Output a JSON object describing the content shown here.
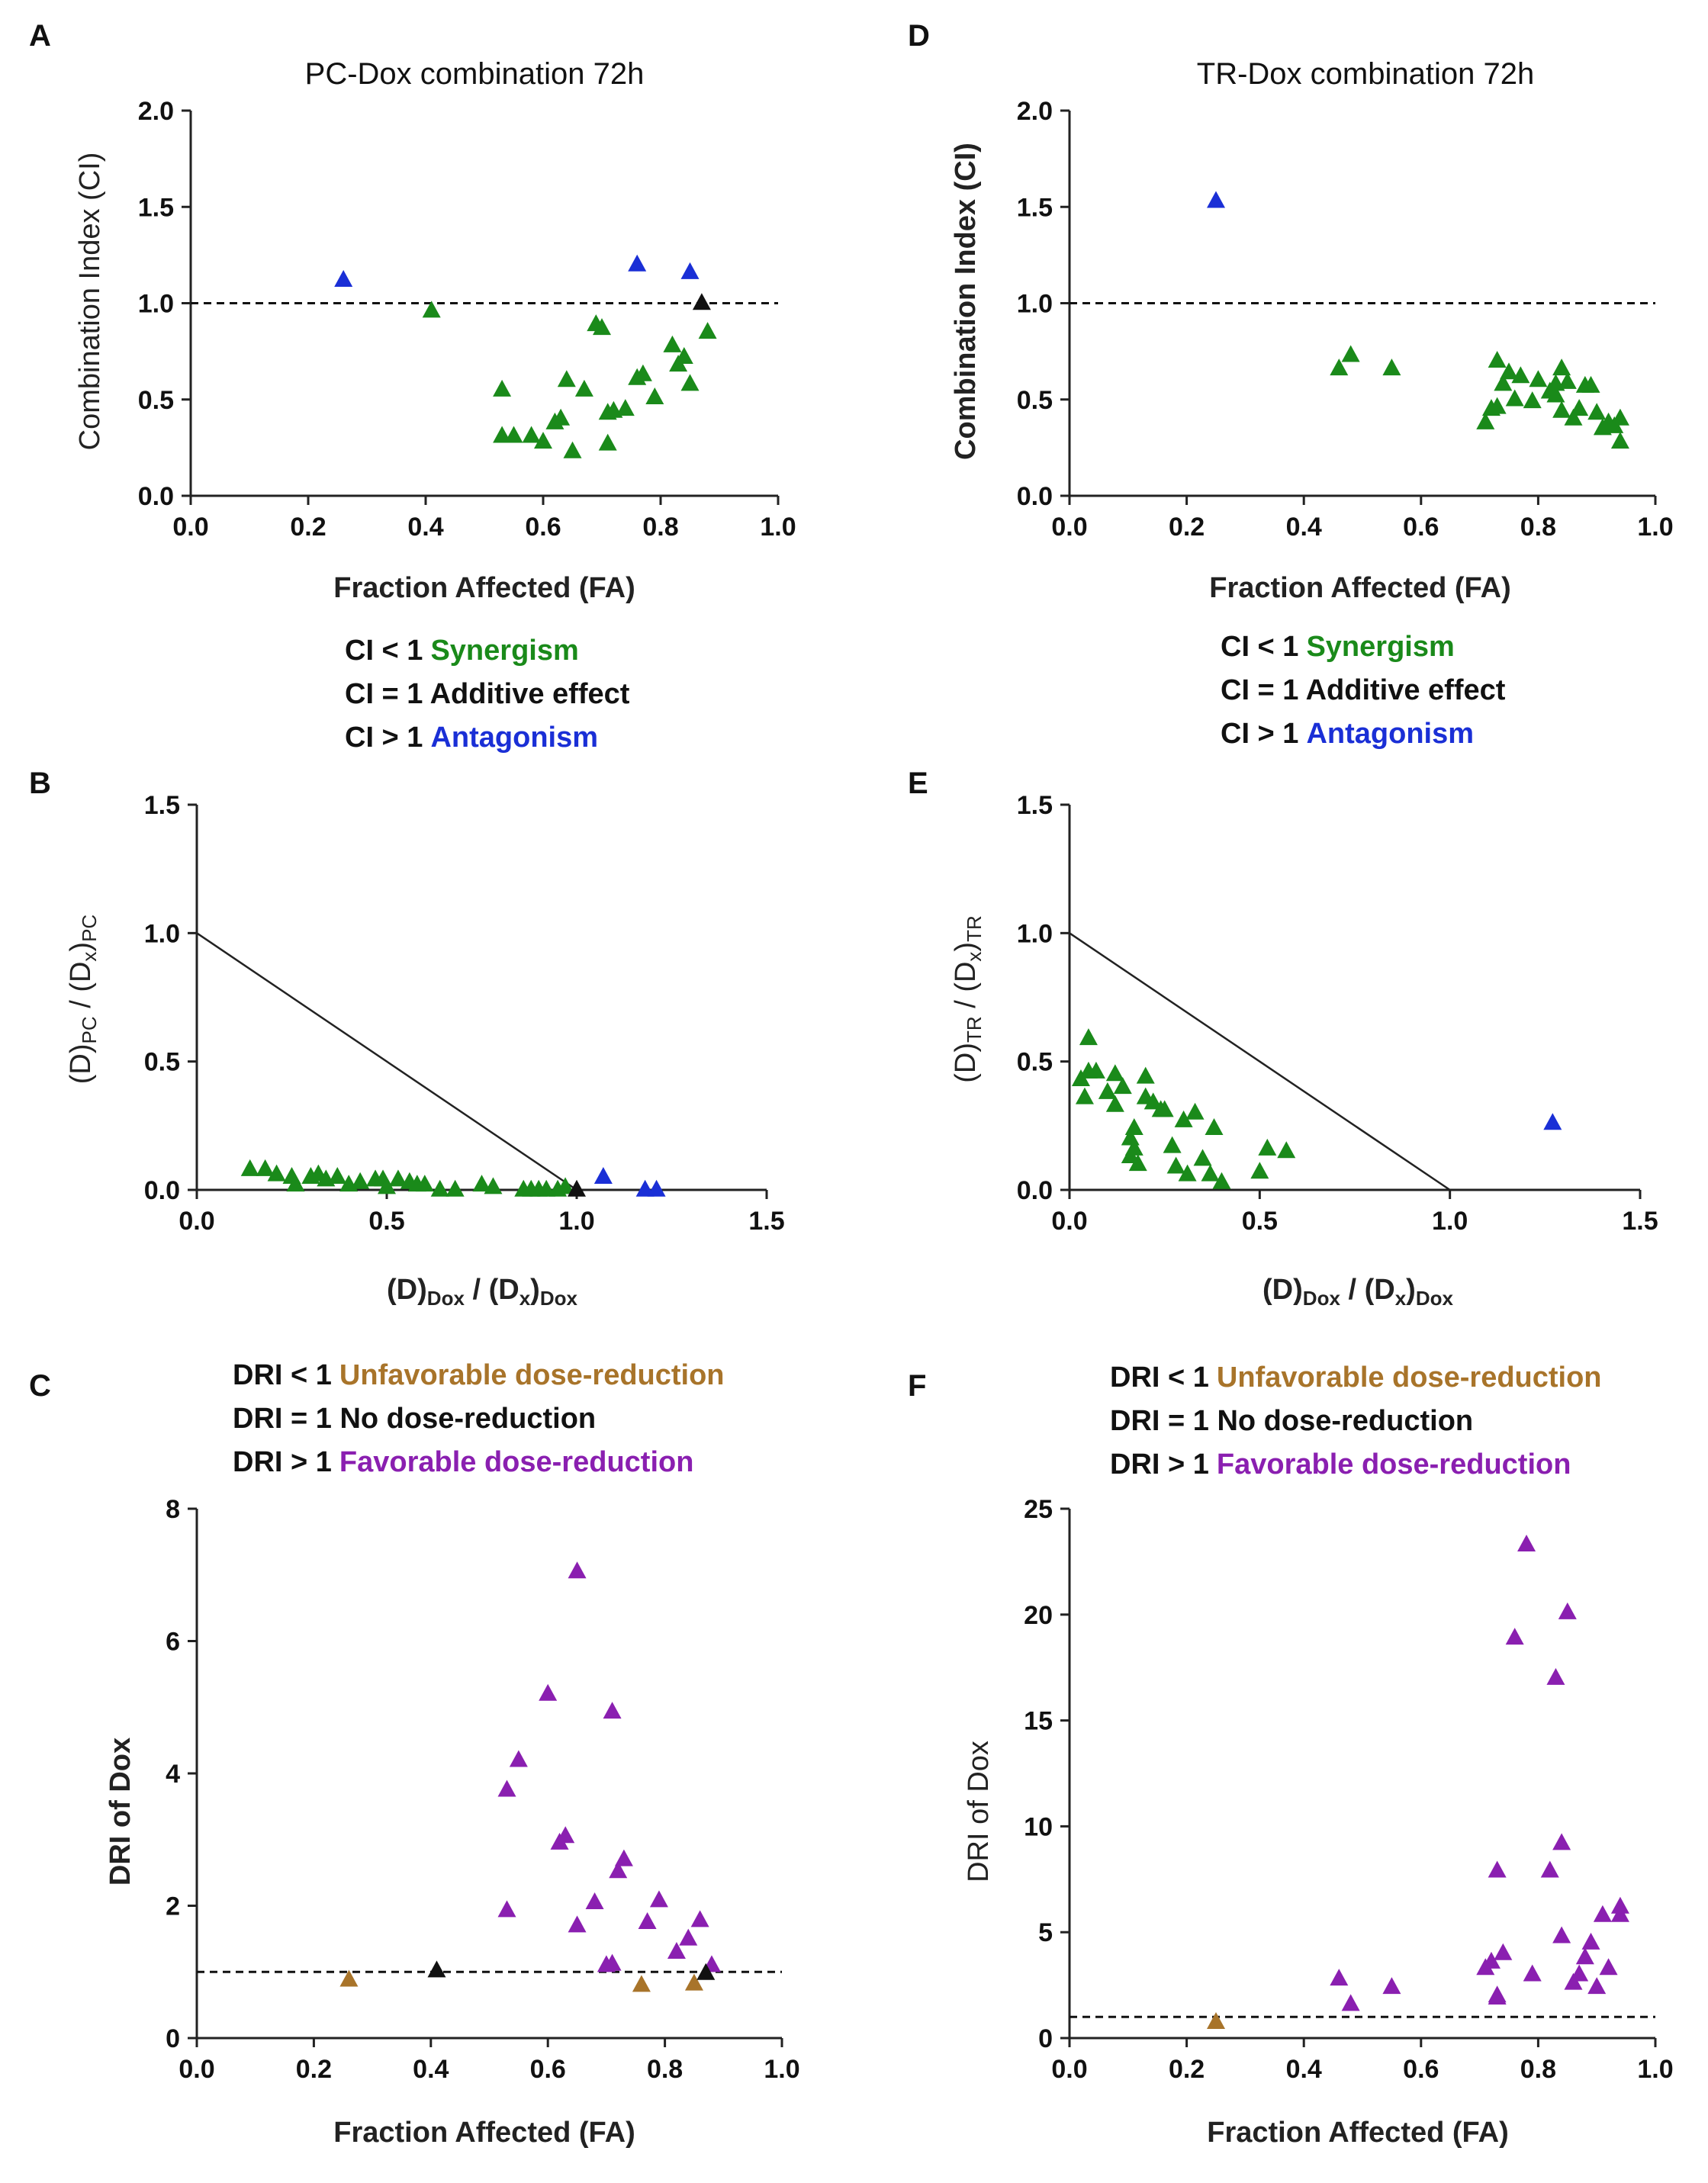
{
  "colors": {
    "synergism": "#1a8a1a",
    "antagonism": "#1a2fd6",
    "additive": "#111111",
    "favorable": "#8a1fb0",
    "unfavorable": "#a8742a"
  },
  "panels": {
    "A": {
      "letter": "A"
    },
    "B": {
      "letter": "B"
    },
    "C": {
      "letter": "C"
    },
    "D": {
      "letter": "D"
    },
    "E": {
      "letter": "E"
    },
    "F": {
      "letter": "F"
    }
  },
  "legend_ci": {
    "line1_prefix": "CI < 1",
    "line1_label": "Synergism",
    "line2": "CI = 1 Additive effect",
    "line3_prefix": "CI > 1",
    "line3_label": "Antagonism"
  },
  "legend_dri": {
    "line1_prefix": "DRI < 1",
    "line1_label": "Unfavorable dose-reduction",
    "line2": "DRI = 1 No dose-reduction",
    "line3_prefix": "DRI > 1",
    "line3_label": "Favorable dose-reduction"
  },
  "chart_data": [
    {
      "id": "A",
      "type": "scatter",
      "title": "PC-Dox combination 72h",
      "xlabel": "Fraction Affected (FA)",
      "ylabel": "Combination Index (CI)",
      "xlim": [
        0,
        1
      ],
      "ylim": [
        0,
        2
      ],
      "xticks": [
        "0.0",
        "0.2",
        "0.4",
        "0.6",
        "0.8",
        "1.0"
      ],
      "yticks": [
        "0.0",
        "0.5",
        "1.0",
        "1.5",
        "2.0"
      ],
      "reference_line": {
        "y": 1.0,
        "style": "dashed"
      },
      "series": [
        {
          "name": "Synergism",
          "color_key": "synergism",
          "points": [
            [
              0.41,
              0.96
            ],
            [
              0.53,
              0.55
            ],
            [
              0.53,
              0.31
            ],
            [
              0.55,
              0.31
            ],
            [
              0.58,
              0.31
            ],
            [
              0.6,
              0.28
            ],
            [
              0.62,
              0.38
            ],
            [
              0.63,
              0.4
            ],
            [
              0.64,
              0.6
            ],
            [
              0.65,
              0.23
            ],
            [
              0.67,
              0.55
            ],
            [
              0.69,
              0.89
            ],
            [
              0.7,
              0.87
            ],
            [
              0.71,
              0.27
            ],
            [
              0.71,
              0.43
            ],
            [
              0.72,
              0.44
            ],
            [
              0.74,
              0.45
            ],
            [
              0.76,
              0.61
            ],
            [
              0.77,
              0.63
            ],
            [
              0.79,
              0.51
            ],
            [
              0.82,
              0.78
            ],
            [
              0.83,
              0.68
            ],
            [
              0.84,
              0.72
            ],
            [
              0.85,
              0.58
            ],
            [
              0.88,
              0.85
            ]
          ]
        },
        {
          "name": "Antagonism",
          "color_key": "antagonism",
          "points": [
            [
              0.26,
              1.12
            ],
            [
              0.76,
              1.2
            ],
            [
              0.85,
              1.16
            ]
          ]
        },
        {
          "name": "Additive",
          "color_key": "additive",
          "points": [
            [
              0.87,
              1.0
            ]
          ]
        }
      ]
    },
    {
      "id": "B",
      "type": "scatter",
      "xlabel": "(D)Dox / (Dx)Dox",
      "ylabel": "(D)PC / (Dx)PC",
      "xlim": [
        0,
        1.5
      ],
      "ylim": [
        0,
        1.5
      ],
      "xticks": [
        "0.0",
        "0.5",
        "1.0",
        "1.5"
      ],
      "yticks": [
        "0.0",
        "0.5",
        "1.0",
        "1.5"
      ],
      "reference_line": {
        "from": [
          0,
          1
        ],
        "to": [
          1,
          0
        ],
        "style": "solid"
      },
      "series": [
        {
          "name": "Synergism",
          "color_key": "synergism",
          "points": [
            [
              0.14,
              0.08
            ],
            [
              0.18,
              0.08
            ],
            [
              0.21,
              0.06
            ],
            [
              0.25,
              0.05
            ],
            [
              0.26,
              0.02
            ],
            [
              0.3,
              0.05
            ],
            [
              0.32,
              0.06
            ],
            [
              0.34,
              0.04
            ],
            [
              0.37,
              0.05
            ],
            [
              0.4,
              0.02
            ],
            [
              0.43,
              0.03
            ],
            [
              0.47,
              0.04
            ],
            [
              0.49,
              0.04
            ],
            [
              0.5,
              0.01
            ],
            [
              0.53,
              0.04
            ],
            [
              0.56,
              0.03
            ],
            [
              0.58,
              0.02
            ],
            [
              0.6,
              0.02
            ],
            [
              0.64,
              0.0
            ],
            [
              0.68,
              0.0
            ],
            [
              0.75,
              0.02
            ],
            [
              0.78,
              0.01
            ],
            [
              0.86,
              0.0
            ],
            [
              0.88,
              0.0
            ],
            [
              0.9,
              0.0
            ],
            [
              0.92,
              0.0
            ],
            [
              0.95,
              0.0
            ],
            [
              0.97,
              0.01
            ]
          ]
        },
        {
          "name": "Antagonism",
          "color_key": "antagonism",
          "points": [
            [
              1.07,
              0.05
            ],
            [
              1.18,
              0.0
            ],
            [
              1.21,
              0.0
            ]
          ]
        },
        {
          "name": "Additive",
          "color_key": "additive",
          "points": [
            [
              1.0,
              0.0
            ]
          ]
        }
      ]
    },
    {
      "id": "C",
      "type": "scatter",
      "xlabel": "Fraction Affected (FA)",
      "ylabel": "DRI of Dox",
      "xlim": [
        0,
        1
      ],
      "ylim": [
        0,
        8
      ],
      "xticks": [
        "0.0",
        "0.2",
        "0.4",
        "0.6",
        "0.8",
        "1.0"
      ],
      "yticks": [
        "0",
        "2",
        "4",
        "6",
        "8"
      ],
      "reference_line": {
        "y": 1.0,
        "style": "dashed"
      },
      "series": [
        {
          "name": "Favorable",
          "color_key": "favorable",
          "points": [
            [
              0.53,
              3.75
            ],
            [
              0.53,
              1.93
            ],
            [
              0.55,
              4.2
            ],
            [
              0.6,
              5.2
            ],
            [
              0.62,
              2.95
            ],
            [
              0.63,
              3.05
            ],
            [
              0.65,
              1.7
            ],
            [
              0.65,
              7.05
            ],
            [
              0.68,
              2.05
            ],
            [
              0.7,
              1.1
            ],
            [
              0.71,
              1.12
            ],
            [
              0.71,
              4.93
            ],
            [
              0.72,
              2.52
            ],
            [
              0.73,
              2.7
            ],
            [
              0.77,
              1.75
            ],
            [
              0.79,
              2.08
            ],
            [
              0.82,
              1.3
            ],
            [
              0.84,
              1.5
            ],
            [
              0.86,
              1.78
            ],
            [
              0.88,
              1.1
            ]
          ]
        },
        {
          "name": "Unfavorable",
          "color_key": "unfavorable",
          "points": [
            [
              0.26,
              0.88
            ],
            [
              0.76,
              0.8
            ],
            [
              0.85,
              0.82
            ]
          ]
        },
        {
          "name": "No dose-reduction",
          "color_key": "additive",
          "points": [
            [
              0.41,
              1.02
            ],
            [
              0.87,
              0.98
            ]
          ]
        }
      ]
    },
    {
      "id": "D",
      "type": "scatter",
      "title": "TR-Dox combination 72h",
      "xlabel": "Fraction Affected (FA)",
      "ylabel": "Combination Index (CI)",
      "xlim": [
        0,
        1
      ],
      "ylim": [
        0,
        2
      ],
      "xticks": [
        "0.0",
        "0.2",
        "0.4",
        "0.6",
        "0.8",
        "1.0"
      ],
      "yticks": [
        "0.0",
        "0.5",
        "1.0",
        "1.5",
        "2.0"
      ],
      "reference_line": {
        "y": 1.0,
        "style": "dashed"
      },
      "series": [
        {
          "name": "Synergism",
          "color_key": "synergism",
          "points": [
            [
              0.46,
              0.66
            ],
            [
              0.48,
              0.73
            ],
            [
              0.55,
              0.66
            ],
            [
              0.71,
              0.38
            ],
            [
              0.72,
              0.45
            ],
            [
              0.73,
              0.46
            ],
            [
              0.73,
              0.7
            ],
            [
              0.74,
              0.58
            ],
            [
              0.75,
              0.64
            ],
            [
              0.76,
              0.5
            ],
            [
              0.77,
              0.62
            ],
            [
              0.79,
              0.49
            ],
            [
              0.8,
              0.6
            ],
            [
              0.82,
              0.54
            ],
            [
              0.83,
              0.52
            ],
            [
              0.83,
              0.58
            ],
            [
              0.84,
              0.66
            ],
            [
              0.84,
              0.44
            ],
            [
              0.85,
              0.59
            ],
            [
              0.86,
              0.4
            ],
            [
              0.87,
              0.45
            ],
            [
              0.88,
              0.57
            ],
            [
              0.89,
              0.57
            ],
            [
              0.9,
              0.43
            ],
            [
              0.91,
              0.35
            ],
            [
              0.92,
              0.38
            ],
            [
              0.93,
              0.36
            ],
            [
              0.94,
              0.4
            ],
            [
              0.94,
              0.28
            ]
          ]
        },
        {
          "name": "Antagonism",
          "color_key": "antagonism",
          "points": [
            [
              0.25,
              1.53
            ]
          ]
        }
      ]
    },
    {
      "id": "E",
      "type": "scatter",
      "xlabel": "(D)Dox / (Dx)Dox",
      "ylabel": "(D)TR / (Dx)TR",
      "xlim": [
        0,
        1.5
      ],
      "ylim": [
        0,
        1.5
      ],
      "xticks": [
        "0.0",
        "0.5",
        "1.0",
        "1.5"
      ],
      "yticks": [
        "0.0",
        "0.5",
        "1.0",
        "1.5"
      ],
      "reference_line": {
        "from": [
          0,
          1
        ],
        "to": [
          1,
          0
        ],
        "style": "solid"
      },
      "series": [
        {
          "name": "Synergism",
          "color_key": "synergism",
          "points": [
            [
              0.03,
              0.43
            ],
            [
              0.04,
              0.36
            ],
            [
              0.05,
              0.46
            ],
            [
              0.05,
              0.59
            ],
            [
              0.07,
              0.46
            ],
            [
              0.1,
              0.38
            ],
            [
              0.12,
              0.45
            ],
            [
              0.12,
              0.33
            ],
            [
              0.14,
              0.4
            ],
            [
              0.16,
              0.13
            ],
            [
              0.16,
              0.2
            ],
            [
              0.17,
              0.16
            ],
            [
              0.17,
              0.24
            ],
            [
              0.18,
              0.1
            ],
            [
              0.2,
              0.36
            ],
            [
              0.2,
              0.44
            ],
            [
              0.22,
              0.34
            ],
            [
              0.24,
              0.31
            ],
            [
              0.25,
              0.31
            ],
            [
              0.27,
              0.17
            ],
            [
              0.28,
              0.09
            ],
            [
              0.3,
              0.27
            ],
            [
              0.31,
              0.06
            ],
            [
              0.33,
              0.3
            ],
            [
              0.35,
              0.12
            ],
            [
              0.37,
              0.06
            ],
            [
              0.38,
              0.24
            ],
            [
              0.4,
              0.03
            ],
            [
              0.5,
              0.07
            ],
            [
              0.52,
              0.16
            ],
            [
              0.57,
              0.15
            ]
          ]
        },
        {
          "name": "Antagonism",
          "color_key": "antagonism",
          "points": [
            [
              1.27,
              0.26
            ]
          ]
        }
      ]
    },
    {
      "id": "F",
      "type": "scatter",
      "xlabel": "Fraction Affected (FA)",
      "ylabel": "DRI of Dox",
      "xlim": [
        0,
        1
      ],
      "ylim": [
        0,
        25
      ],
      "xticks": [
        "0.0",
        "0.2",
        "0.4",
        "0.6",
        "0.8",
        "1.0"
      ],
      "yticks": [
        "0",
        "5",
        "10",
        "15",
        "20",
        "25"
      ],
      "reference_line": {
        "y": 1.0,
        "style": "dashed"
      },
      "series": [
        {
          "name": "Favorable",
          "color_key": "favorable",
          "points": [
            [
              0.46,
              2.8
            ],
            [
              0.48,
              1.6
            ],
            [
              0.55,
              2.4
            ],
            [
              0.71,
              3.3
            ],
            [
              0.72,
              3.6
            ],
            [
              0.73,
              1.9
            ],
            [
              0.73,
              2.0
            ],
            [
              0.73,
              7.9
            ],
            [
              0.74,
              4.0
            ],
            [
              0.76,
              18.9
            ],
            [
              0.78,
              23.3
            ],
            [
              0.79,
              3.0
            ],
            [
              0.82,
              7.9
            ],
            [
              0.83,
              17.0
            ],
            [
              0.84,
              9.2
            ],
            [
              0.84,
              4.8
            ],
            [
              0.85,
              20.1
            ],
            [
              0.86,
              2.6
            ],
            [
              0.87,
              3.0
            ],
            [
              0.88,
              3.8
            ],
            [
              0.89,
              4.5
            ],
            [
              0.9,
              2.4
            ],
            [
              0.91,
              5.8
            ],
            [
              0.92,
              3.3
            ],
            [
              0.94,
              5.8
            ],
            [
              0.94,
              6.2
            ]
          ]
        },
        {
          "name": "Unfavorable",
          "color_key": "unfavorable",
          "points": [
            [
              0.25,
              0.75
            ]
          ]
        }
      ]
    }
  ]
}
